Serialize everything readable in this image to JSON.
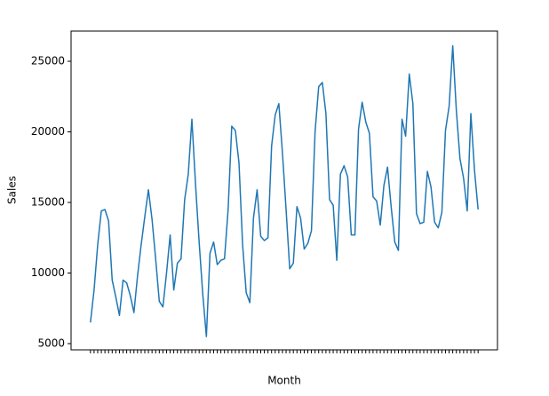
{
  "chart_data": {
    "type": "line",
    "x_label": "Month",
    "y_label": "Sales",
    "categories": [
      null,
      null,
      null,
      null,
      null,
      null,
      null,
      null,
      null,
      null,
      null,
      null,
      null,
      null,
      null,
      null,
      null,
      null,
      null,
      null,
      null,
      null,
      null,
      null,
      null,
      null,
      null,
      null,
      null,
      null,
      null,
      null,
      null,
      null,
      null,
      null,
      null,
      null,
      null,
      null,
      null,
      null,
      null,
      null,
      null,
      null,
      null,
      null,
      null,
      null,
      null,
      null,
      null,
      null,
      null,
      null,
      null,
      null,
      null,
      null,
      null,
      null,
      null,
      null,
      null,
      null,
      null,
      null,
      null,
      null,
      null,
      null,
      null,
      null,
      null,
      null,
      null,
      null,
      null,
      null,
      null,
      null,
      null,
      null,
      null,
      null,
      null,
      null,
      null,
      null,
      null,
      null,
      null,
      null,
      null,
      null,
      null,
      null,
      null,
      null,
      null,
      null,
      null,
      null,
      null,
      null,
      null,
      null
    ],
    "series": [
      {
        "name": "Sales",
        "color": "#1f77b4",
        "values": [
          6500,
          8800,
          12000,
          14400,
          14500,
          13700,
          9500,
          8300,
          7000,
          9500,
          9300,
          8400,
          7200,
          9800,
          12000,
          14000,
          15900,
          13800,
          11000,
          8000,
          7600,
          10000,
          12700,
          8800,
          10700,
          11000,
          15200,
          17000,
          20900,
          16300,
          12200,
          8500,
          5500,
          11400,
          12200,
          10600,
          10900,
          11000,
          14500,
          20400,
          20100,
          17800,
          12000,
          8600,
          7900,
          13900,
          15900,
          12600,
          12300,
          12500,
          19000,
          21200,
          22000,
          18500,
          14500,
          10300,
          10700,
          14700,
          13900,
          11700,
          12100,
          13000,
          20000,
          23200,
          23500,
          21300,
          15200,
          14800,
          10900,
          17000,
          17600,
          16800,
          12700,
          12700,
          20200,
          22100,
          20700,
          19900,
          15400,
          15100,
          13400,
          16200,
          17500,
          14700,
          12200,
          11600,
          20900,
          19700,
          24100,
          22000,
          14200,
          13500,
          13600,
          17200,
          16100,
          13600,
          13200,
          14300,
          20100,
          21800,
          26100,
          21500,
          18100,
          16700,
          14400,
          21300,
          17300,
          14500
        ]
      }
    ],
    "ylim": [
      4560,
      27140
    ],
    "yticks": [
      5000,
      10000,
      15000,
      20000,
      25000
    ]
  }
}
